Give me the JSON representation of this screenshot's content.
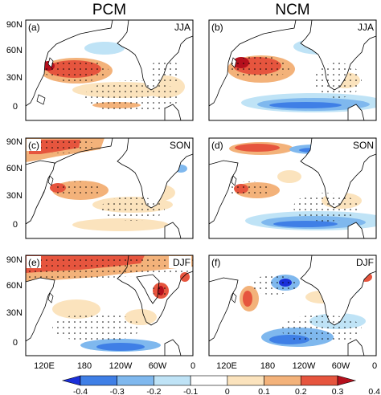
{
  "columns": [
    "PCM",
    "NCM"
  ],
  "panels": [
    {
      "label": "(a)",
      "season": "JJA",
      "model": "PCM"
    },
    {
      "label": "(b)",
      "season": "JJA",
      "model": "NCM"
    },
    {
      "label": "(c)",
      "season": "SON",
      "model": "PCM"
    },
    {
      "label": "(d)",
      "season": "SON",
      "model": "NCM"
    },
    {
      "label": "(e)",
      "season": "DJF",
      "model": "PCM"
    },
    {
      "label": "(f)",
      "season": "DJF",
      "model": "NCM"
    }
  ],
  "lat_ticks": [
    "90N",
    "60N",
    "30N",
    "0"
  ],
  "lon_ticks": [
    "120E",
    "180",
    "120W",
    "60W",
    "0"
  ],
  "colorbar": {
    "ticks": [
      "-0.4",
      "-0.3",
      "-0.2",
      "-0.1",
      "0",
      "0.1",
      "0.2",
      "0.3",
      "0.4"
    ],
    "colors": [
      "#1a2fd9",
      "#3f7fe6",
      "#7fb8ee",
      "#bfe3f6",
      "#ffffff",
      "#fbe3bd",
      "#f3b27a",
      "#e6553e",
      "#b5101d"
    ]
  }
}
